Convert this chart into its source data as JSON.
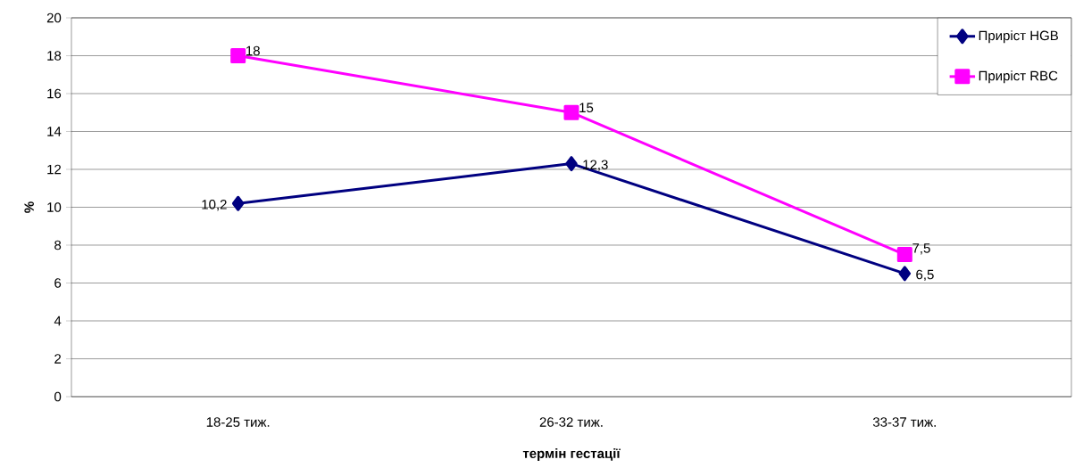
{
  "chart_data": {
    "type": "line",
    "xlabel": "термін гестації",
    "ylabel": "%",
    "categories": [
      "18-25 тиж.",
      "26-32 тиж.",
      "33-37 тиж."
    ],
    "series": [
      {
        "name": "Приріст HGB",
        "color": "#000080",
        "values": [
          10.2,
          12.3,
          6.5
        ],
        "value_labels": [
          "10,2",
          "12,3",
          "6,5"
        ],
        "marker": "diamond"
      },
      {
        "name": "Приріст RBC",
        "color": "#ff00ff",
        "values": [
          18,
          15,
          7.5
        ],
        "value_labels": [
          "18",
          "15",
          "7,5"
        ],
        "marker": "square"
      }
    ],
    "ylim": [
      0,
      20
    ],
    "yticks": [
      0,
      2,
      4,
      6,
      8,
      10,
      12,
      14,
      16,
      18,
      20
    ],
    "grid": "y",
    "legend": "top right",
    "line_style": "solid"
  }
}
